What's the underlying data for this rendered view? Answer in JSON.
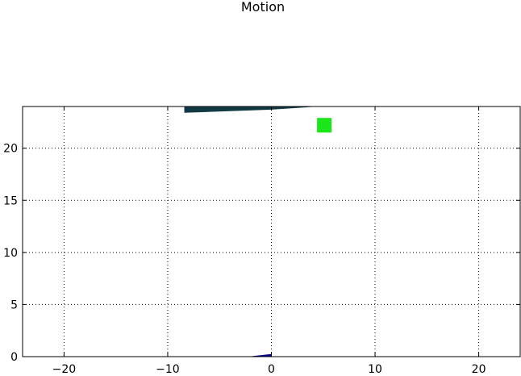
{
  "chart_data": {
    "type": "scatter",
    "title": "Motion",
    "xlabel": "",
    "ylabel": "",
    "xlim": [
      -24,
      24
    ],
    "ylim": [
      0,
      24
    ],
    "grid": true,
    "xticks": [
      -20,
      -10,
      0,
      10,
      20
    ],
    "xtick_labels": [
      "−20",
      "−10",
      "0",
      "10",
      "20"
    ],
    "yticks": [
      0,
      5,
      10,
      15,
      20
    ],
    "ytick_labels": [
      "0",
      "5",
      "10",
      "15",
      "20"
    ],
    "shapes": [
      {
        "kind": "polygon",
        "color": "#113a44",
        "points": [
          [
            -8.4,
            23.4
          ],
          [
            -8.4,
            24.0
          ],
          [
            4.5,
            24.0
          ],
          [
            0.0,
            23.7
          ]
        ]
      },
      {
        "kind": "polygon",
        "color": "#00008b",
        "points": [
          [
            -2.3,
            0.0
          ],
          [
            0.0,
            0.0
          ],
          [
            0.0,
            0.25
          ]
        ]
      },
      {
        "kind": "square",
        "color": "#1ae61a",
        "x": 5.1,
        "y": 22.2,
        "size": 1.4
      }
    ]
  }
}
